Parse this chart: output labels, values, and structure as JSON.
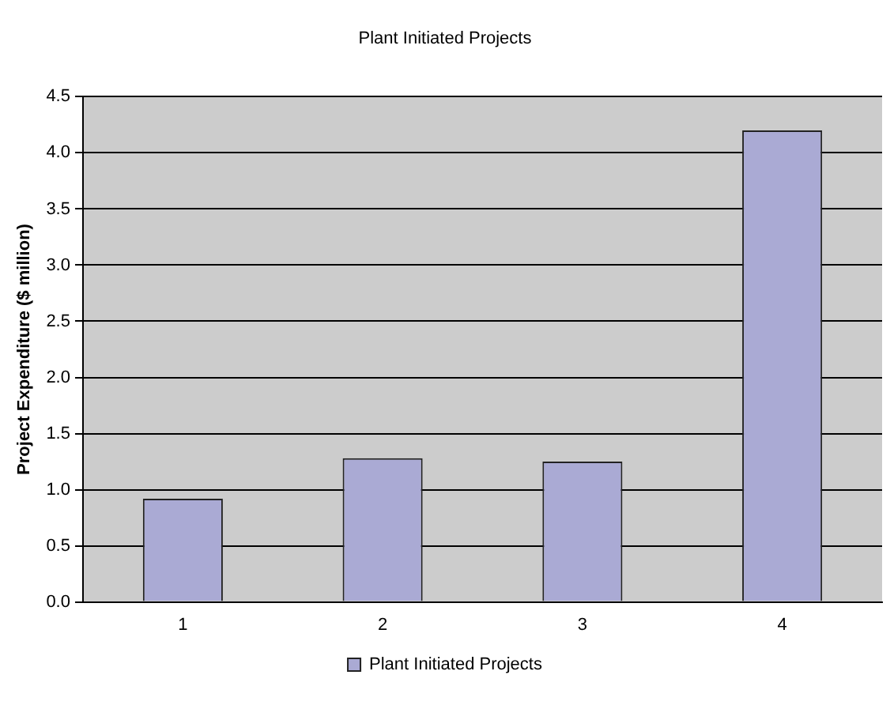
{
  "chart_data": {
    "type": "bar",
    "title": "Plant Initiated Projects",
    "ylabel": "Project Expenditure ($ million)",
    "categories": [
      "1",
      "2",
      "3",
      "4"
    ],
    "series": [
      {
        "name": "Plant Initiated Projects",
        "color": "#aaaad4",
        "values": [
          0.92,
          1.28,
          1.25,
          4.2
        ]
      }
    ],
    "ylim": [
      0,
      4.5
    ],
    "yticks": [
      {
        "value": 0,
        "label": "0.0"
      },
      0.5,
      {
        "value": 1,
        "label": "1.0"
      },
      1.5,
      {
        "value": 2,
        "label": "2.0"
      },
      2.5,
      {
        "value": 3,
        "label": "3.0"
      },
      3.5,
      {
        "value": 4,
        "label": "4.0"
      },
      4.5
    ],
    "grid": "y",
    "legend": "bottom"
  }
}
